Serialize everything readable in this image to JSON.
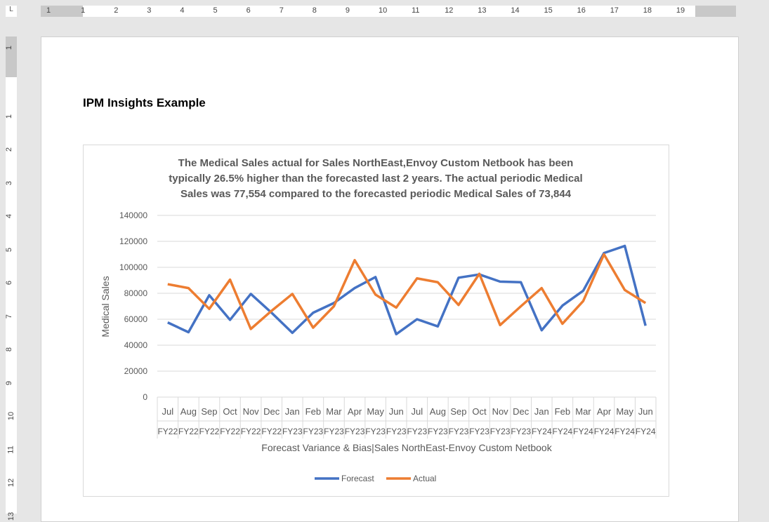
{
  "ruler": {
    "labels": [
      "1",
      "1",
      "2",
      "3",
      "4",
      "5",
      "6",
      "7",
      "8",
      "9",
      "10",
      "11",
      "12",
      "13",
      "14",
      "15",
      "16",
      "17",
      "18",
      "19"
    ],
    "vlabels": [
      "1",
      "1",
      "2",
      "3",
      "4",
      "5",
      "6",
      "7",
      "8",
      "9",
      "10",
      "11",
      "12",
      "13"
    ]
  },
  "document": {
    "heading": "IPM Insights Example"
  },
  "chart_data": {
    "type": "line",
    "title_lines": [
      "The Medical Sales actual for Sales NorthEast,Envoy Custom Netbook has been",
      "typically 26.5% higher than the forecasted last 2 years. The actual periodic Medical",
      "Sales was 77,554 compared to the forecasted periodic Medical Sales of 73,844"
    ],
    "xlabel": "Forecast Variance & Bias|Sales NorthEast-Envoy Custom Netbook",
    "ylabel": "Medical Sales",
    "ylim": [
      0,
      140000
    ],
    "yticks": [
      "0",
      "20000",
      "40000",
      "60000",
      "80000",
      "100000",
      "120000",
      "140000"
    ],
    "grid": true,
    "legend": "bottom",
    "months": [
      "Jul",
      "Aug",
      "Sep",
      "Oct",
      "Nov",
      "Dec",
      "Jan",
      "Feb",
      "Mar",
      "Apr",
      "May",
      "Jun",
      "Jul",
      "Aug",
      "Sep",
      "Oct",
      "Nov",
      "Dec",
      "Jan",
      "Feb",
      "Mar",
      "Apr",
      "May",
      "Jun"
    ],
    "years": [
      "FY22",
      "FY22",
      "FY22",
      "FY22",
      "FY22",
      "FY22",
      "FY23",
      "FY23",
      "FY23",
      "FY23",
      "FY23",
      "FY23",
      "FY23",
      "FY23",
      "FY23",
      "FY23",
      "FY23",
      "FY23",
      "FY24",
      "FY24",
      "FY24",
      "FY24",
      "FY24",
      "FY24"
    ],
    "series": [
      {
        "name": "Forecast",
        "color": "#4472c4",
        "values": [
          57500,
          50000,
          78500,
          59500,
          79500,
          65000,
          49500,
          65000,
          72500,
          84000,
          92500,
          48500,
          60000,
          54500,
          92000,
          94500,
          89000,
          88500,
          51500,
          70500,
          82000,
          111000,
          116500,
          55000
        ]
      },
      {
        "name": "Actual",
        "color": "#ed7d31",
        "values": [
          87000,
          84000,
          68000,
          90500,
          52500,
          66500,
          79500,
          53500,
          70000,
          105500,
          79000,
          69000,
          91500,
          88500,
          71000,
          95000,
          55500,
          70000,
          84000,
          56500,
          74000,
          110000,
          82500,
          72500
        ]
      }
    ]
  }
}
